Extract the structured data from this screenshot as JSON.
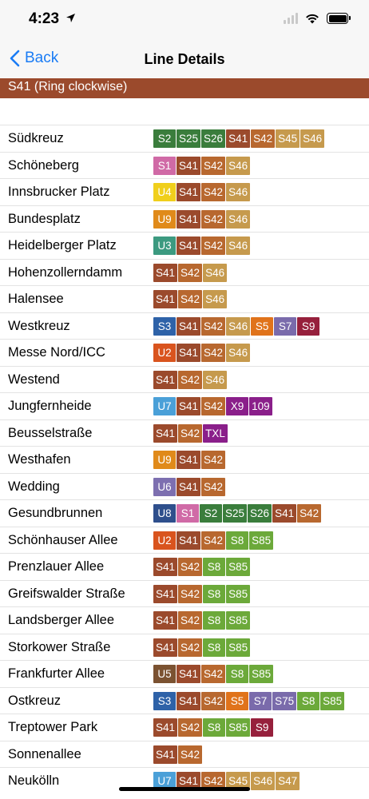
{
  "status": {
    "time": "4:23"
  },
  "nav": {
    "back_label": "Back",
    "title": "Line Details"
  },
  "line": {
    "name": "S41 (Ring clockwise)"
  },
  "stations": [
    {
      "name": "Südkreuz",
      "lines": [
        "S2",
        "S25",
        "S26",
        "S41",
        "S42",
        "S45",
        "S46"
      ]
    },
    {
      "name": "Schöneberg",
      "lines": [
        "S1",
        "S41",
        "S42",
        "S46"
      ]
    },
    {
      "name": "Innsbrucker Platz",
      "lines": [
        "U4",
        "S41",
        "S42",
        "S46"
      ]
    },
    {
      "name": "Bundesplatz",
      "lines": [
        "U9",
        "S41",
        "S42",
        "S46"
      ]
    },
    {
      "name": "Heidelberger Platz",
      "lines": [
        "U3",
        "S41",
        "S42",
        "S46"
      ]
    },
    {
      "name": "Hohenzollerndamm",
      "lines": [
        "S41",
        "S42",
        "S46"
      ]
    },
    {
      "name": "Halensee",
      "lines": [
        "S41",
        "S42",
        "S46"
      ]
    },
    {
      "name": "Westkreuz",
      "lines": [
        "S3",
        "S41",
        "S42",
        "S46",
        "S5",
        "S7",
        "S9"
      ]
    },
    {
      "name": "Messe Nord/ICC",
      "lines": [
        "U2",
        "S41",
        "S42",
        "S46"
      ]
    },
    {
      "name": "Westend",
      "lines": [
        "S41",
        "S42",
        "S46"
      ]
    },
    {
      "name": "Jungfernheide",
      "lines": [
        "U7",
        "S41",
        "S42",
        "X9",
        "109"
      ]
    },
    {
      "name": "Beusselstraße",
      "lines": [
        "S41",
        "S42",
        "TXL"
      ]
    },
    {
      "name": "Westhafen",
      "lines": [
        "U9",
        "S41",
        "S42"
      ]
    },
    {
      "name": "Wedding",
      "lines": [
        "U6",
        "S41",
        "S42"
      ]
    },
    {
      "name": "Gesundbrunnen",
      "lines": [
        "U8",
        "S1",
        "S2",
        "S25",
        "S26",
        "S41",
        "S42"
      ]
    },
    {
      "name": "Schönhauser Allee",
      "lines": [
        "U2",
        "S41",
        "S42",
        "S8",
        "S85"
      ]
    },
    {
      "name": "Prenzlauer Allee",
      "lines": [
        "S41",
        "S42",
        "S8",
        "S85"
      ]
    },
    {
      "name": "Greifswalder Straße",
      "lines": [
        "S41",
        "S42",
        "S8",
        "S85"
      ]
    },
    {
      "name": "Landsberger Allee",
      "lines": [
        "S41",
        "S42",
        "S8",
        "S85"
      ]
    },
    {
      "name": "Storkower Straße",
      "lines": [
        "S41",
        "S42",
        "S8",
        "S85"
      ]
    },
    {
      "name": "Frankfurter Allee",
      "lines": [
        "U5",
        "S41",
        "S42",
        "S8",
        "S85"
      ]
    },
    {
      "name": "Ostkreuz",
      "lines": [
        "S3",
        "S41",
        "S42",
        "S5",
        "S7",
        "S75",
        "S8",
        "S85"
      ]
    },
    {
      "name": "Treptower Park",
      "lines": [
        "S41",
        "S42",
        "S8",
        "S85",
        "S9"
      ]
    },
    {
      "name": "Sonnenallee",
      "lines": [
        "S41",
        "S42"
      ]
    },
    {
      "name": "Neukölln",
      "lines": [
        "U7",
        "S41",
        "S42",
        "S45",
        "S46",
        "S47"
      ]
    }
  ],
  "line_colors": {
    "S1": "#d06aa6",
    "S2": "#3a7d3c",
    "S25": "#3a7d3c",
    "S26": "#3a7d3c",
    "S3": "#2e62a8",
    "S41": "#9b4a2c",
    "S42": "#b8682f",
    "S45": "#c69a4d",
    "S46": "#c69a4d",
    "S47": "#c69a4d",
    "S5": "#e0731b",
    "S7": "#7a6bab",
    "S75": "#7a6bab",
    "S8": "#6ca93a",
    "S85": "#6ca93a",
    "S9": "#96203c",
    "U2": "#d9541e",
    "U3": "#3c9a80",
    "U4": "#f0cf1c",
    "U5": "#7b5231",
    "U6": "#7d6fb0",
    "U7": "#4aa0d8",
    "U8": "#2e4f8c",
    "U9": "#e08a1a",
    "X9": "#8a1f8a",
    "109": "#8a1f8a",
    "TXL": "#8a1f8a"
  }
}
